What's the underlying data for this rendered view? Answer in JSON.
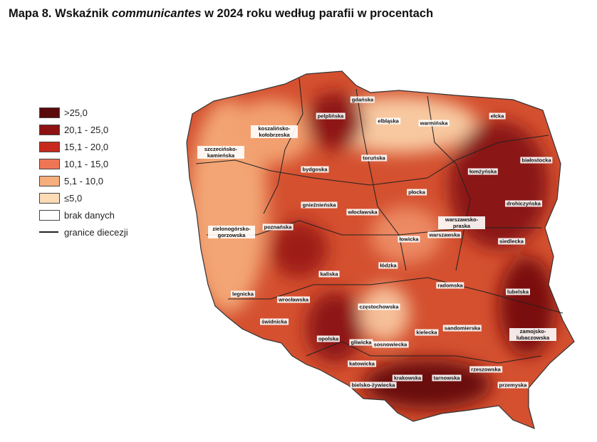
{
  "title": {
    "before": "Mapa 8. Wskaźnik",
    "italic": "communicantes",
    "after": "w 2024 roku według parafii w procentach"
  },
  "legend": [
    {
      "label": ">25,0",
      "color": "#5b0a0c"
    },
    {
      "label": "20,1 - 25,0",
      "color": "#8e1212"
    },
    {
      "label": "15,1 - 20,0",
      "color": "#c8291f"
    },
    {
      "label": "10,1 - 15,0",
      "color": "#ef7654"
    },
    {
      "label": "5,1 - 10,0",
      "color": "#f6ae7c"
    },
    {
      "label": "≤5,0",
      "color": "#fcdcb6"
    },
    {
      "label": "brak danych",
      "color": "#ffffff"
    }
  ],
  "boundary_label": "granice diecezji",
  "dioceses": [
    "gdańska",
    "pelplińska",
    "elbląska",
    "warmińska",
    "ełcka",
    "koszalińsko-kołobrzeska",
    "szczecińsko-kamieńska",
    "toruńska",
    "białostocka",
    "bydgoska",
    "łomżyńska",
    "płocka",
    "gnieźnieńska",
    "włocławska",
    "drohiczyńska",
    "warszawsko-praska",
    "zielonogórsko-gorzowska",
    "poznańska",
    "łowicka",
    "warszawska",
    "siedlecka",
    "łódzka",
    "kaliska",
    "radomska",
    "legnicka",
    "lubelska",
    "wrocławska",
    "częstochowska",
    "świdnicka",
    "sandomierska",
    "kielecka",
    "zamojsko-lubaczowska",
    "opolska",
    "gliwicka",
    "sosnowiecka",
    "katowicka",
    "rzeszowska",
    "krakowska",
    "tarnowska",
    "bielsko-żywiecka",
    "przemyska"
  ]
}
